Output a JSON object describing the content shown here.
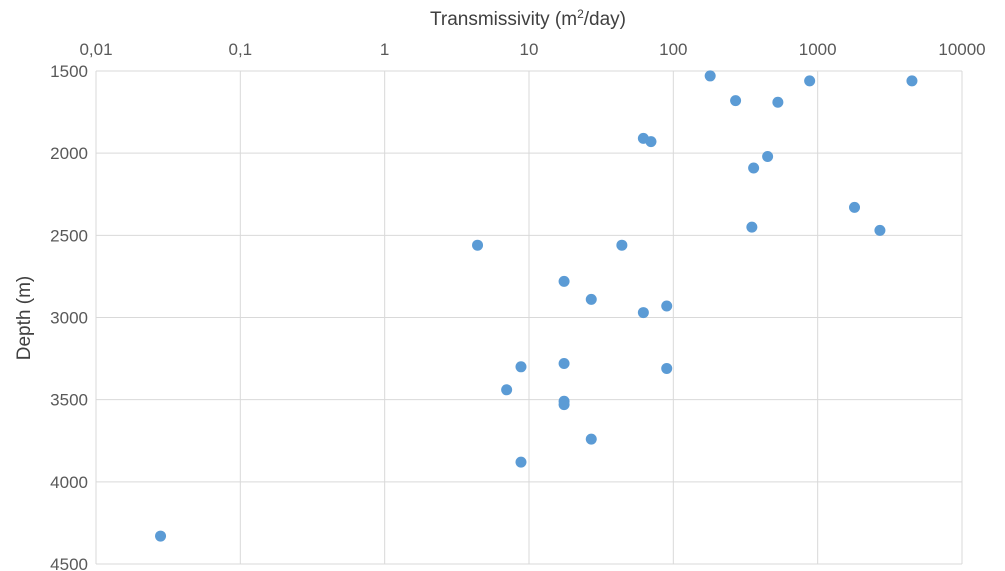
{
  "chart_data": {
    "type": "scatter",
    "title": "",
    "xlabel_prefix": "Transmissivity (m",
    "xlabel_sup": "2",
    "xlabel_suffix": "/day)",
    "ylabel": "Depth (m)",
    "x_scale": "log",
    "x_axis_position": "top",
    "y_axis_inverted": true,
    "xlim": [
      0.01,
      10000
    ],
    "ylim": [
      1500,
      4500
    ],
    "x_ticks": [
      0.01,
      0.1,
      1,
      10,
      100,
      1000,
      10000
    ],
    "x_tick_labels": [
      "0,01",
      "0,1",
      "1",
      "10",
      "100",
      "1000",
      "10000"
    ],
    "y_ticks": [
      1500,
      2000,
      2500,
      3000,
      3500,
      4000,
      4500
    ],
    "y_tick_labels": [
      "1500",
      "2000",
      "2500",
      "3000",
      "3500",
      "4000",
      "4500"
    ],
    "grid": true,
    "marker_color": "#5b9bd5",
    "series": [
      {
        "points": [
          {
            "x": 180,
            "y": 1530
          },
          {
            "x": 880,
            "y": 1560
          },
          {
            "x": 4500,
            "y": 1560
          },
          {
            "x": 270,
            "y": 1680
          },
          {
            "x": 530,
            "y": 1690
          },
          {
            "x": 62,
            "y": 1910
          },
          {
            "x": 70,
            "y": 1930
          },
          {
            "x": 450,
            "y": 2020
          },
          {
            "x": 360,
            "y": 2090
          },
          {
            "x": 1800,
            "y": 2330
          },
          {
            "x": 350,
            "y": 2450
          },
          {
            "x": 2700,
            "y": 2470
          },
          {
            "x": 4.4,
            "y": 2560
          },
          {
            "x": 44,
            "y": 2560
          },
          {
            "x": 17.5,
            "y": 2780
          },
          {
            "x": 27,
            "y": 2890
          },
          {
            "x": 90,
            "y": 2930
          },
          {
            "x": 62,
            "y": 2970
          },
          {
            "x": 17.5,
            "y": 3280
          },
          {
            "x": 8.8,
            "y": 3300
          },
          {
            "x": 90,
            "y": 3310
          },
          {
            "x": 7,
            "y": 3440
          },
          {
            "x": 17.5,
            "y": 3510
          },
          {
            "x": 17.5,
            "y": 3530
          },
          {
            "x": 27,
            "y": 3740
          },
          {
            "x": 8.8,
            "y": 3880
          },
          {
            "x": 0.028,
            "y": 4330
          }
        ]
      }
    ]
  }
}
